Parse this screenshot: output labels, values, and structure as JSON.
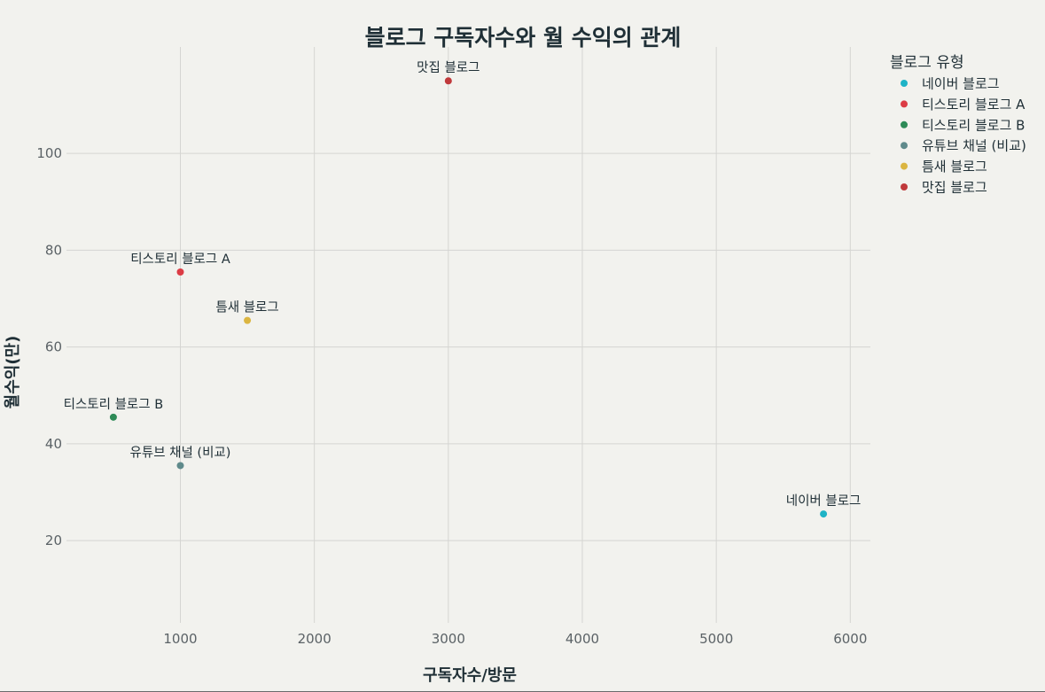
{
  "chart_data": {
    "type": "scatter",
    "title": "블로그 구독자수와 월 수익의 관계",
    "xlabel": "구독자수/방문",
    "ylabel": "월수익(만)",
    "xlim": [
      150,
      6150
    ],
    "ylim": [
      3,
      122
    ],
    "x_ticks": [
      1000,
      2000,
      3000,
      4000,
      5000,
      6000
    ],
    "y_ticks": [
      20,
      40,
      60,
      80,
      100
    ],
    "grid": true,
    "legend_title": "블로그 유형",
    "legend_position": "right",
    "series": [
      {
        "name": "네이버 블로그",
        "color": "#1eb3c6",
        "points": [
          {
            "x": 5800,
            "y": 25.5
          }
        ],
        "point_label": "네이버 블로그"
      },
      {
        "name": "티스토리 블로그 A",
        "color": "#dc3c45",
        "points": [
          {
            "x": 1000,
            "y": 75.5
          }
        ],
        "point_label": "티스토리 블로그 A"
      },
      {
        "name": "티스토리 블로그 B",
        "color": "#2e8b57",
        "points": [
          {
            "x": 500,
            "y": 45.5
          }
        ],
        "point_label": "티스토리 블로그 B"
      },
      {
        "name": "유튜브 채널 (비교)",
        "color": "#5f8a8b",
        "points": [
          {
            "x": 1000,
            "y": 35.5
          }
        ],
        "point_label": "유튜브 채널 (비교)"
      },
      {
        "name": "틈새 블로그",
        "color": "#dbb540",
        "points": [
          {
            "x": 1500,
            "y": 65.5
          }
        ],
        "point_label": "틈새 블로그"
      },
      {
        "name": "맛집 블로그",
        "color": "#c0393b",
        "points": [
          {
            "x": 3000,
            "y": 115
          }
        ],
        "point_label": "맛집 블로그"
      }
    ]
  }
}
